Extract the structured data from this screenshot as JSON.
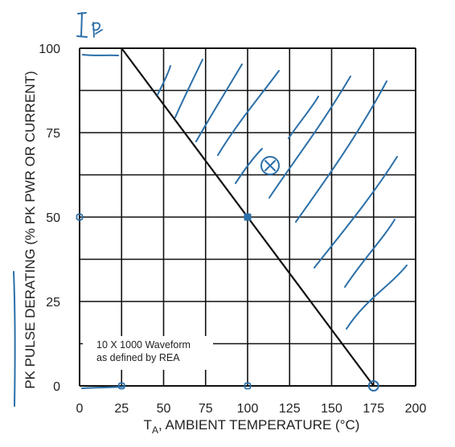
{
  "chart_data": {
    "type": "line",
    "title": "",
    "xlabel_symbol": "T",
    "xlabel_subscript": "A",
    "xlabel_rest": ", AMBIENT TEMPERATURE (°C)",
    "ylabel": "PK PULSE DERATING (% PK PWR OR CURRENT)",
    "xlim": [
      0,
      200
    ],
    "ylim": [
      0,
      100
    ],
    "x_ticks": [
      0,
      25,
      50,
      75,
      100,
      125,
      150,
      175,
      200
    ],
    "y_ticks": [
      0,
      25,
      50,
      75,
      100
    ],
    "x_tick_labels": [
      "0",
      "25",
      "50",
      "75",
      "100",
      "125",
      "150",
      "175",
      "200"
    ],
    "y_tick_labels": [
      "0",
      "25",
      "50",
      "75",
      "100"
    ],
    "grid": true,
    "series": [
      {
        "x": [
          25,
          175
        ],
        "y": [
          100,
          0
        ],
        "color": "#111111"
      }
    ],
    "annotation_lines": [
      "10 X 1000 Waveform",
      "as defined by REA"
    ],
    "handwritten": {
      "label": "Ip",
      "color": "#2b6fa8",
      "marked_points": [
        {
          "x": 0,
          "y": 50
        },
        {
          "x": 100,
          "y": 50
        },
        {
          "x": 25,
          "y": 0
        },
        {
          "x": 100,
          "y": 0
        },
        {
          "x": 175,
          "y": 0
        }
      ],
      "circled_x_point": {
        "x": 110,
        "y": 65
      }
    }
  }
}
